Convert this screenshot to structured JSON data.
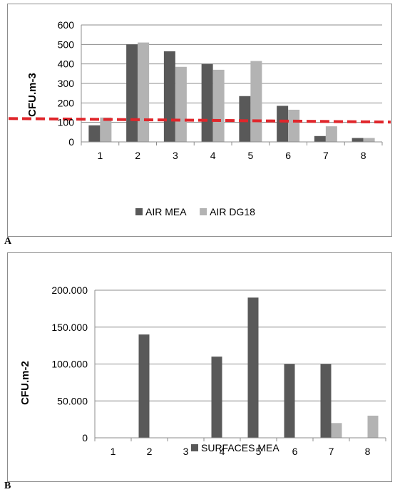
{
  "panels": [
    {
      "label": "A",
      "chart_data": {
        "type": "bar",
        "title": "",
        "xlabel": "",
        "ylabel": "CFU.m-3",
        "categories": [
          "1",
          "2",
          "3",
          "4",
          "5",
          "6",
          "7",
          "8"
        ],
        "ylim": [
          0,
          600
        ],
        "yticks": [
          "0",
          "100",
          "200",
          "300",
          "400",
          "500",
          "600"
        ],
        "ytick_values": [
          0,
          100,
          200,
          300,
          400,
          500,
          600
        ],
        "grid": true,
        "legend": "bottom",
        "reference_line": {
          "value": 120,
          "color": "#e0262b",
          "style": "dashed"
        },
        "series": [
          {
            "name": "AIR MEA",
            "color": "#595959",
            "values": [
              85,
              500,
              465,
              400,
              235,
              185,
              30,
              20
            ]
          },
          {
            "name": "AIR DG18",
            "color": "#b3b3b3",
            "values": [
              125,
              510,
              385,
              370,
              415,
              165,
              80,
              20
            ]
          }
        ]
      }
    },
    {
      "label": "B",
      "chart_data": {
        "type": "bar",
        "title": "",
        "xlabel": "",
        "ylabel": "CFU.m-2",
        "categories": [
          "1",
          "2",
          "3",
          "4",
          "5",
          "6",
          "7",
          "8"
        ],
        "ylim": [
          0,
          200000
        ],
        "yticks": [
          "0",
          "50.000",
          "100.000",
          "150.000",
          "200.000"
        ],
        "ytick_values": [
          0,
          50000,
          100000,
          150000,
          200000
        ],
        "grid": true,
        "legend": "bottom",
        "series": [
          {
            "name": "SURFACES MEA",
            "color": "#595959",
            "values": [
              0,
              140000,
              0,
              110000,
              190000,
              100000,
              100000,
              0
            ]
          },
          {
            "name": "",
            "color": "#b3b3b3",
            "values": [
              0,
              0,
              0,
              0,
              0,
              0,
              20000,
              30000
            ]
          }
        ]
      }
    }
  ]
}
